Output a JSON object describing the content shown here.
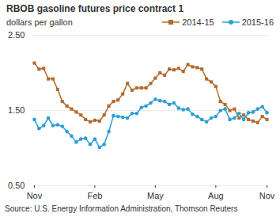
{
  "chart_data": {
    "type": "line",
    "title": "RBOB gasoline futures price contract 1",
    "subtitle": "dollars per gallon",
    "source": "Source: U.S. Energy Information Administration, Thomson Reuters",
    "categories": [
      "Nov",
      null,
      null,
      null,
      null,
      null,
      null,
      null,
      null,
      null,
      null,
      null,
      null,
      "Feb",
      null,
      null,
      null,
      null,
      null,
      null,
      null,
      null,
      null,
      null,
      null,
      null,
      "May",
      null,
      null,
      null,
      null,
      null,
      null,
      null,
      null,
      null,
      null,
      null,
      null,
      "Aug",
      null,
      null,
      null,
      null,
      null,
      null,
      null,
      null,
      null,
      null,
      "Nov"
    ],
    "series": [
      {
        "name": "2014-15",
        "color": "#b36a2c",
        "marker": "square",
        "values": [
          2.13,
          2.05,
          2.06,
          1.92,
          1.92,
          1.78,
          1.62,
          1.56,
          1.52,
          1.48,
          1.44,
          1.38,
          1.35,
          1.37,
          1.36,
          1.44,
          1.56,
          1.62,
          1.64,
          1.72,
          1.86,
          1.77,
          1.8,
          1.8,
          1.8,
          1.86,
          1.93,
          2.0,
          1.97,
          2.05,
          2.04,
          2.06,
          2.02,
          2.11,
          2.08,
          2.07,
          2.05,
          1.92,
          1.88,
          1.82,
          1.62,
          1.58,
          1.5,
          1.52,
          1.4,
          1.44,
          1.38,
          1.36,
          1.34,
          1.42,
          1.38
        ]
      },
      {
        "name": "2015-16",
        "color": "#2a9fd6",
        "marker": "circle",
        "values": [
          1.38,
          1.26,
          1.3,
          1.4,
          1.3,
          1.31,
          1.29,
          1.22,
          1.16,
          1.08,
          1.12,
          1.13,
          1.05,
          1.12,
          1.01,
          1.05,
          1.22,
          1.43,
          1.42,
          1.41,
          1.4,
          1.46,
          1.46,
          1.54,
          1.56,
          1.6,
          1.65,
          1.63,
          1.62,
          1.58,
          1.6,
          1.53,
          1.51,
          1.52,
          1.45,
          1.42,
          1.38,
          1.35,
          1.4,
          1.42,
          1.5,
          1.52,
          1.38,
          1.4,
          1.46,
          1.38,
          1.47,
          1.48,
          1.52,
          1.55,
          1.47
        ]
      }
    ],
    "ylim": [
      0.5,
      2.5
    ],
    "yticks": [
      {
        "value": 0.5,
        "label": "0.50"
      },
      {
        "value": 1.5,
        "label": "1.50"
      },
      {
        "value": 2.5,
        "label": "2.50"
      }
    ],
    "grid": true,
    "legend": "top-right"
  }
}
